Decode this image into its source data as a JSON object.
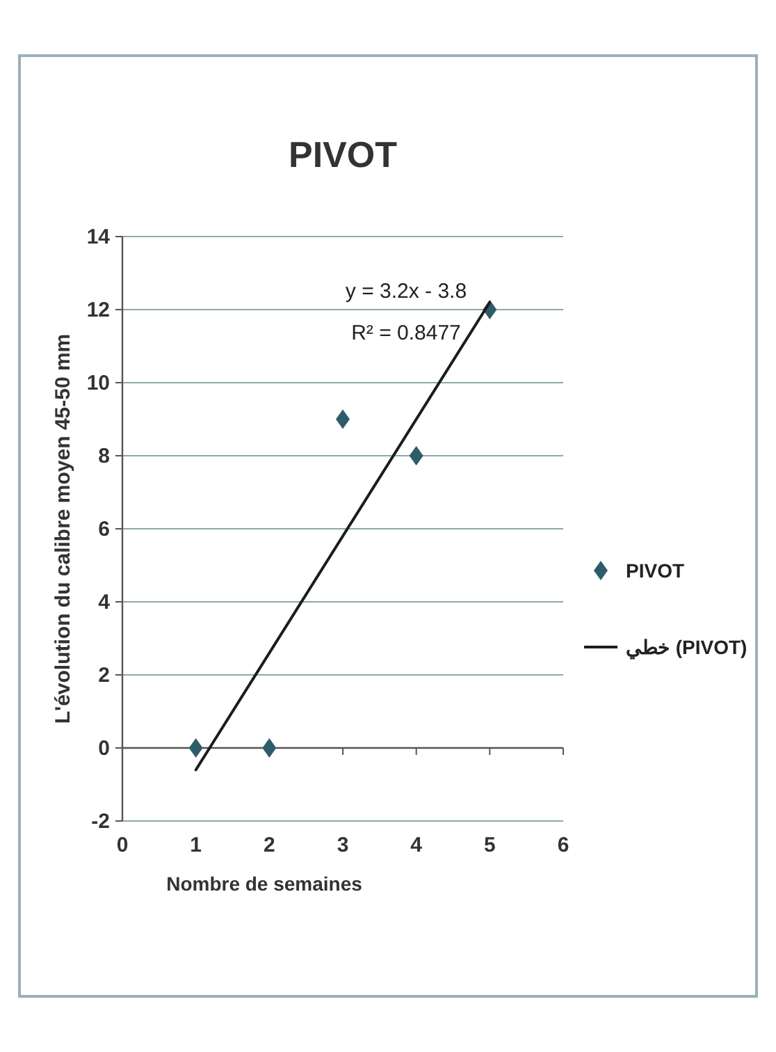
{
  "chart_data": {
    "type": "scatter",
    "title": "PIVOT",
    "xlabel": "Nombre de semaines",
    "ylabel": "L'évolution du calibre  moyen 45-50 mm",
    "xlim": [
      0,
      6
    ],
    "xticks": [
      0,
      1,
      2,
      3,
      4,
      5,
      6
    ],
    "ylim": [
      -2,
      14
    ],
    "yticks": [
      -2,
      0,
      2,
      4,
      6,
      8,
      10,
      12,
      14
    ],
    "grid": "y",
    "legend": "right",
    "series": [
      {
        "name": "PIVOT",
        "type": "scatter",
        "color": "#2e5c6a",
        "marker": "diamond",
        "x": [
          1,
          2,
          3,
          4,
          5
        ],
        "values": [
          0,
          0,
          9,
          8,
          12
        ]
      },
      {
        "name": "خطي (PIVOT)",
        "type": "line",
        "color": "#1c1c1c",
        "marker": "none",
        "line_style": "solid",
        "x": [
          1,
          5
        ],
        "values": [
          -0.6,
          12.2
        ]
      }
    ],
    "annotations": [
      "y = 3.2x - 3.8",
      "R² = 0.8477"
    ]
  }
}
